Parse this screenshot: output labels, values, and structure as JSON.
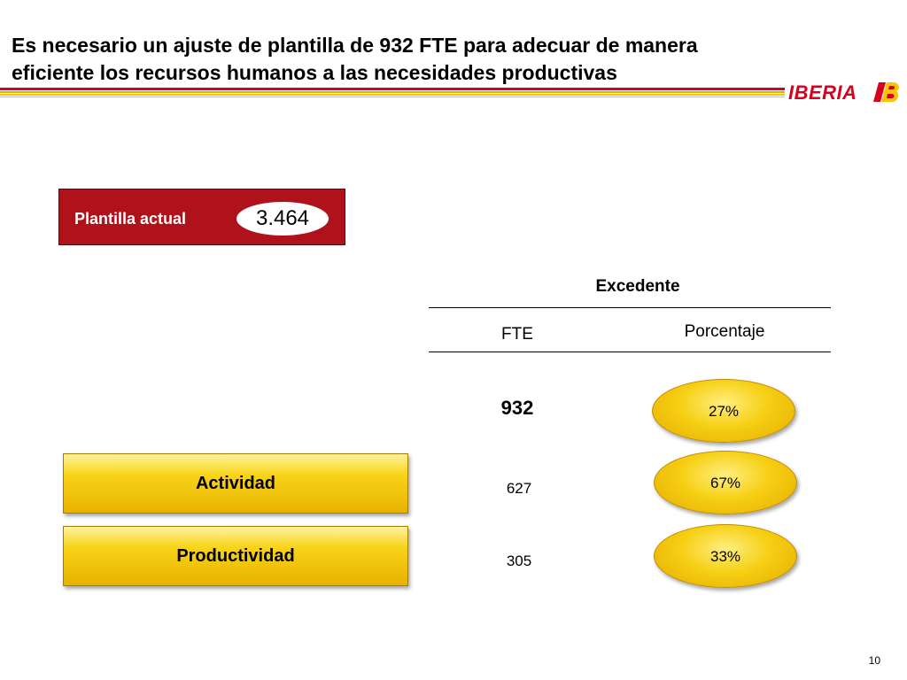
{
  "header": {
    "title_lines": [
      "Es necesario un ajuste de plantilla de 932 FTE para adecuar de manera",
      "eficiente los recursos humanos a las necesidades productivas"
    ],
    "logo_text": "IBERIA",
    "colors": {
      "red": "#d8001f",
      "yellow": "#f7c600",
      "orange": "#f2a900"
    }
  },
  "plantilla": {
    "label": "Plantilla actual",
    "value": "3.464",
    "color": "#b0121b"
  },
  "table": {
    "group_header": "Excedente",
    "columns": [
      "FTE",
      "Porcentaje"
    ],
    "total": {
      "fte": "932",
      "pct": "27%"
    },
    "rows": [
      {
        "label": "Actividad",
        "fte": "627",
        "pct": "67%"
      },
      {
        "label": "Productividad",
        "fte": "305",
        "pct": "33%"
      }
    ]
  },
  "footer": {
    "page_number": "10"
  }
}
